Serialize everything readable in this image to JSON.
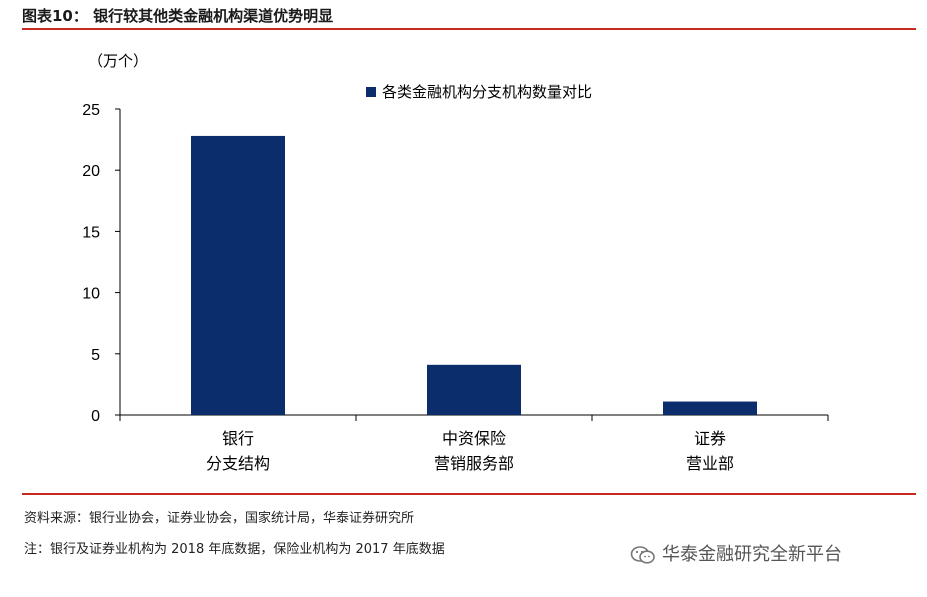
{
  "header": {
    "title": "图表10：  银行较其他类金融机构渠道优势明显"
  },
  "chart_data": {
    "type": "bar",
    "unit_label": "（万个）",
    "categories": [
      [
        "银行",
        "分支结构"
      ],
      [
        "中资保险",
        "营销服务部"
      ],
      [
        "证券",
        "营业部"
      ]
    ],
    "series": [
      {
        "name": "各类金融机构分支机构数量对比",
        "values": [
          22.8,
          4.1,
          1.1
        ],
        "color": "#0b2d6b"
      }
    ],
    "ylim": [
      0,
      25
    ],
    "yticks": [
      0,
      5,
      10,
      15,
      20,
      25
    ],
    "legend_position": "top-right",
    "grid": false
  },
  "footer": {
    "source": "资料来源：银行业协会，证券业协会，国家统计局，华泰证券研究所",
    "note": "注：银行及证券业机构为 2018 年底数据，保险业机构为 2017 年底数据",
    "watermark": "华泰金融研究全新平台"
  },
  "colors": {
    "accent_rule": "#c8291e",
    "bar": "#0b2d6b"
  }
}
